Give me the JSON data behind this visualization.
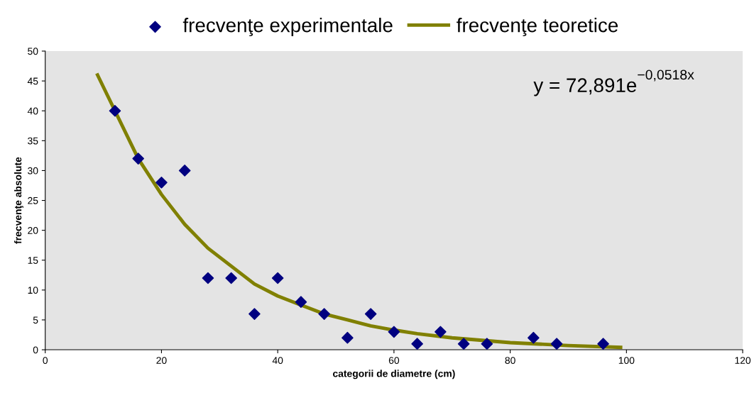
{
  "chart_data": {
    "type": "scatter",
    "xlabel": "categorii de diametre (cm)",
    "ylabel": "frecvenţe absolute",
    "xlim": [
      0,
      120
    ],
    "xticks": [
      0,
      20,
      40,
      60,
      80,
      100,
      120
    ],
    "ylim": [
      0,
      50
    ],
    "yticks": [
      0,
      5,
      10,
      15,
      20,
      25,
      30,
      35,
      40,
      45,
      50
    ],
    "grid": false,
    "legend": "top",
    "annotations": [
      "y = 72,891e$^{−0,0518x}$"
    ],
    "series": [
      {
        "name": "frecvenţe experimentale",
        "marker": "diamond",
        "color": "#000080",
        "x": [
          12,
          16,
          20,
          24,
          28,
          32,
          36,
          40,
          44,
          48,
          52,
          56,
          60,
          64,
          68,
          72,
          76,
          84,
          88,
          96
        ],
        "values": [
          40,
          32,
          28,
          30,
          12,
          12,
          6,
          12,
          8,
          6,
          2,
          6,
          3,
          1,
          3,
          1,
          1,
          2,
          1,
          1
        ]
      },
      {
        "name": "frecvenţe teoretice",
        "type": "line",
        "marker": "none",
        "color": "#808000",
        "x": [
          9,
          12,
          16,
          20,
          24,
          28,
          32,
          36,
          40,
          44,
          48,
          52,
          56,
          60,
          64,
          70,
          80,
          90,
          99
        ],
        "values": [
          46,
          40,
          32,
          26,
          21,
          17,
          14,
          11,
          9,
          7.5,
          6,
          5,
          4,
          3.3,
          2.7,
          2,
          1.2,
          0.7,
          0.4
        ]
      }
    ]
  }
}
